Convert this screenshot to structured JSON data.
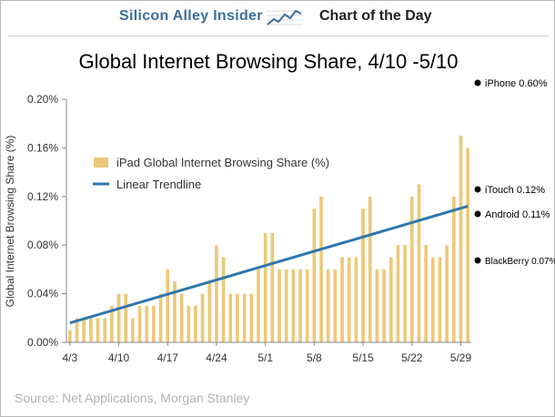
{
  "header": {
    "brand": "Silicon Alley Insider",
    "section": "Chart of the Day"
  },
  "source": "Source: Net Applications, Morgan Stanley",
  "colors": {
    "bar": "#ecc97a",
    "trend": "#2e77ad",
    "brand": "#3d6e9e"
  },
  "chart_data": {
    "type": "bar",
    "title": "Global Internet Browsing Share, 4/10 -5/10",
    "ylabel": "Global Internet Browsing Share (%)",
    "xlabel": "",
    "ylim": [
      0,
      0.2
    ],
    "yticks": [
      "0.00%",
      "0.04%",
      "0.08%",
      "0.12%",
      "0.16%",
      "0.20%"
    ],
    "xticks": [
      "4/3",
      "4/10",
      "4/17",
      "4/24",
      "5/1",
      "5/8",
      "5/15",
      "5/22",
      "5/29"
    ],
    "series": [
      {
        "name": "iPad Global Internet Browsing Share (%)",
        "values": [
          0.01,
          0.02,
          0.02,
          0.02,
          0.02,
          0.02,
          0.03,
          0.04,
          0.04,
          0.02,
          0.03,
          0.03,
          0.03,
          0.04,
          0.06,
          0.05,
          0.04,
          0.03,
          0.03,
          0.04,
          0.05,
          0.08,
          0.07,
          0.04,
          0.04,
          0.04,
          0.04,
          0.06,
          0.09,
          0.09,
          0.06,
          0.06,
          0.06,
          0.06,
          0.06,
          0.11,
          0.12,
          0.06,
          0.06,
          0.07,
          0.07,
          0.07,
          0.11,
          0.12,
          0.06,
          0.06,
          0.07,
          0.08,
          0.08,
          0.12,
          0.13,
          0.08,
          0.07,
          0.07,
          0.08,
          0.12,
          0.17,
          0.16
        ]
      },
      {
        "name": "Linear Trendline",
        "type": "line",
        "start": 0.016,
        "end": 0.112
      }
    ],
    "annotations": [
      {
        "label": "iPhone 0.60%",
        "value": 0.6
      },
      {
        "label": "iTouch 0.12%",
        "value": 0.12
      },
      {
        "label": "Android 0.11%",
        "value": 0.11
      },
      {
        "label": "BlackBerry 0.07%",
        "value": 0.07
      }
    ],
    "legend": "upper-left",
    "grid": false
  }
}
